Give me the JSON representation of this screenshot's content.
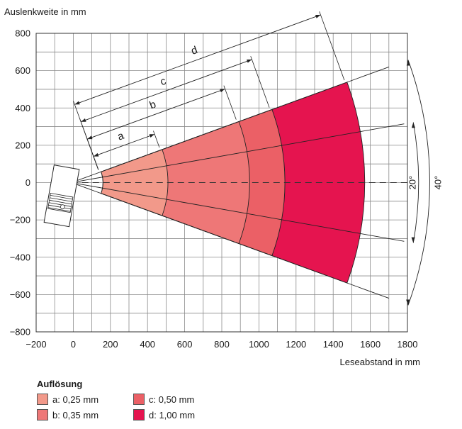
{
  "chart_data": {
    "type": "area",
    "title": "",
    "ylabel": "Auslenkweite in mm",
    "xlabel": "Leseabstand in mm",
    "xlim": [
      -200,
      1800
    ],
    "ylim": [
      -800,
      800
    ],
    "x_ticks": [
      -200,
      0,
      200,
      400,
      600,
      800,
      1000,
      1200,
      1400,
      1600,
      1800
    ],
    "y_ticks": [
      800,
      600,
      400,
      200,
      0,
      -200,
      -400,
      -600,
      -800
    ],
    "x_tick_labels": [
      "−200",
      "0",
      "200",
      "400",
      "600",
      "800",
      "1000",
      "1200",
      "1400",
      "1600",
      "1800"
    ],
    "y_tick_labels": [
      "800",
      "600",
      "400",
      "200",
      "0",
      "−200",
      "−400",
      "−600",
      "−800"
    ],
    "grid": true,
    "scanner_origin": [
      -10,
      0
    ],
    "opening_angle_deg": 40,
    "inner_angle_deg": 20,
    "angle_labels": [
      "20°",
      "40°"
    ],
    "series": [
      {
        "name": "a: 0,25 mm",
        "letter": "a",
        "min_reading_distance": 160,
        "max_reading_distance": 510,
        "color": "#F2998A"
      },
      {
        "name": "b: 0,35 mm",
        "letter": "b",
        "min_reading_distance": 160,
        "max_reading_distance": 950,
        "color": "#EE7777"
      },
      {
        "name": "c: 0,50 mm",
        "letter": "c",
        "min_reading_distance": 160,
        "max_reading_distance": 1140,
        "color": "#EB6066"
      },
      {
        "name": "d: 1,00 mm",
        "letter": "d",
        "min_reading_distance": 160,
        "max_reading_distance": 1570,
        "color": "#E5144F"
      }
    ]
  },
  "legend": {
    "title": "Auflösung",
    "items": [
      {
        "label": "a: 0,25 mm",
        "color": "#F2998A"
      },
      {
        "label": "c: 0,50 mm",
        "color": "#EB6066"
      },
      {
        "label": "b: 0,35 mm",
        "color": "#EE7777"
      },
      {
        "label": "d: 1,00 mm",
        "color": "#E5144F"
      }
    ]
  }
}
